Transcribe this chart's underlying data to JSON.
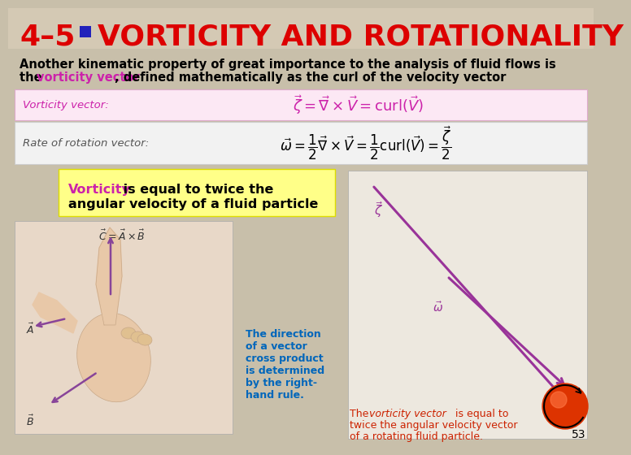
{
  "bg_color": "#c8bfaa",
  "title_color": "#dd0000",
  "bullet_color": "#2222bb",
  "highlight_color": "#cc22aa",
  "formula_color": "#cc22aa",
  "callout_bg": "#ffff88",
  "callout_border": "#dddd00",
  "box1_bg": "#fce8f4",
  "box2_bg": "#f2f2f2",
  "caption_left_color": "#0066bb",
  "caption_right_color": "#cc2200",
  "page_num": "53",
  "title_line": "4–5  VORTICITY AND ROTATIONALITY",
  "body1": "Another kinematic property of great importance to the analysis of fluid flows is",
  "body2a": "the ",
  "body2b": "vorticity vector",
  "body2c": ", defined mathematically as the curl of the velocity vector",
  "label1": "Vorticity vector:",
  "label2": "Rate of rotation vector:",
  "callout_bold1": "Vorticity",
  "callout_rest1": " is equal to twice the",
  "callout_line2": "angular velocity of a fluid particle",
  "cap_left": "The direction\nof a vector\ncross product\nis determined\nby the right-\nhand rule.",
  "cap_right1": "The ",
  "cap_right2": "vorticity vector",
  "cap_right3": " is equal to",
  "cap_right4": "twice the angular velocity vector",
  "cap_right5": "of a rotating fluid particle.",
  "vec_bg": "#e8e0d0",
  "hand_bg": "#ddd0c0"
}
